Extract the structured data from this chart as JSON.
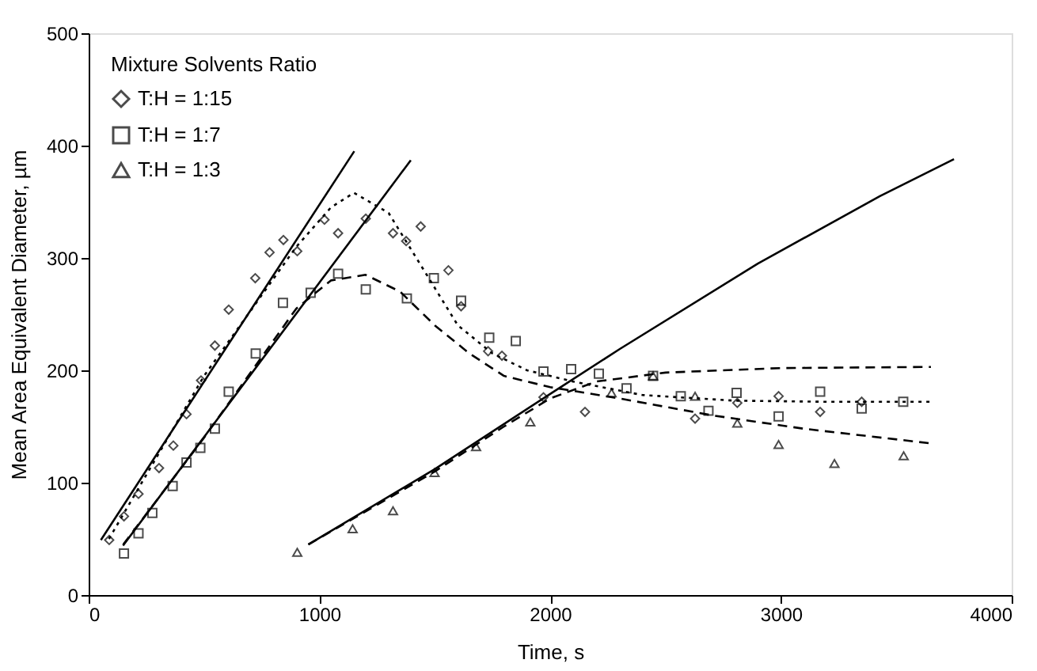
{
  "chart_data": {
    "type": "scatter",
    "xlabel": "Time, s",
    "ylabel": "Mean Area Equivalent Diameter, µm",
    "legend_title": "Mixture Solvents Ratio",
    "xlim": [
      0,
      4000
    ],
    "xticks": [
      0,
      1000,
      2000,
      3000,
      4000
    ],
    "ylim": [
      0,
      500
    ],
    "yticks": [
      0,
      100,
      200,
      300,
      400,
      500
    ],
    "grid": false,
    "legend": "top left",
    "series": [
      {
        "name": "T:H = 1:15",
        "color": "#000000",
        "marker": "diamond",
        "x": [
          89,
          153,
          216,
          305,
          367,
          424,
          487,
          547,
          607,
          722,
          784,
          844,
          904,
          1022,
          1081,
          1201,
          1319,
          1376,
          1439,
          1559,
          1614,
          1731,
          1791,
          1971,
          2151,
          2628,
          2811,
          2990,
          3170,
          3350
        ],
        "values": [
          49,
          70,
          90,
          113,
          133,
          161,
          191,
          222,
          254,
          282,
          305,
          316,
          306,
          334,
          322,
          335,
          322,
          315,
          328,
          289,
          257,
          217,
          213,
          176,
          163,
          157,
          171,
          177,
          163,
          172
        ]
      },
      {
        "name": "T:H = 1:7",
        "color": "#000000",
        "marker": "square",
        "x": [
          153,
          216,
          276,
          364,
          424,
          484,
          547,
          607,
          724,
          842,
          962,
          1081,
          1201,
          1379,
          1496,
          1614,
          1736,
          1851,
          1971,
          2091,
          2211,
          2331,
          2446,
          2566,
          2686,
          2808,
          2990,
          3170,
          3350,
          3530
        ],
        "values": [
          37,
          55,
          73,
          97,
          118,
          131,
          148,
          181,
          215,
          260,
          269,
          286,
          272,
          264,
          282,
          262,
          229,
          226,
          199,
          201,
          197,
          184,
          195,
          177,
          164,
          180,
          159,
          181,
          166,
          172
        ]
      },
      {
        "name": "T:H = 1:3",
        "color": "#000000",
        "marker": "triangle",
        "x": [
          904,
          1144,
          1319,
          1499,
          1679,
          1914,
          2266,
          2446,
          2628,
          2811,
          2990,
          3232,
          3532
        ],
        "values": [
          38,
          59,
          75,
          109,
          132,
          154,
          180,
          195,
          177,
          153,
          134,
          117,
          124
        ]
      },
      {
        "type": "line",
        "color": "#000000",
        "line_style": "solid",
        "x": [
          53,
          1151
        ],
        "values": [
          49,
          395
        ]
      },
      {
        "type": "line",
        "color": "#000000",
        "line_style": "solid",
        "x": [
          149,
          1396
        ],
        "values": [
          44,
          387
        ]
      },
      {
        "type": "line",
        "color": "#000000",
        "line_style": "solid",
        "x": [
          952,
          1500,
          2000,
          2302,
          2900,
          3429,
          3750
        ],
        "values": [
          45,
          112,
          179,
          219,
          295,
          355,
          388
        ]
      },
      {
        "type": "line",
        "color": "#000000",
        "line_style": "dotted",
        "x": [
          88,
          500,
          900,
          1050,
          1150,
          1300,
          1450,
          1600,
          1750,
          1900,
          2100,
          2400,
          2800,
          3200,
          3650
        ],
        "values": [
          50,
          195,
          310,
          345,
          358,
          340,
          290,
          240,
          215,
          200,
          190,
          178,
          173,
          172,
          172
        ]
      },
      {
        "type": "line",
        "color": "#000000",
        "line_style": "dashed",
        "x": [
          150,
          500,
          900,
          1050,
          1200,
          1350,
          1500,
          1650,
          1800,
          2000,
          2300,
          2700,
          3100,
          3650
        ],
        "values": [
          45,
          140,
          255,
          280,
          285,
          270,
          240,
          215,
          195,
          185,
          175,
          160,
          148,
          135
        ]
      },
      {
        "type": "line",
        "color": "#000000",
        "line_style": "dashed",
        "x": [
          952,
          1500,
          1800,
          2000,
          2200,
          2500,
          3000,
          3650
        ],
        "values": [
          45,
          110,
          150,
          175,
          190,
          198,
          202,
          203
        ]
      }
    ]
  }
}
